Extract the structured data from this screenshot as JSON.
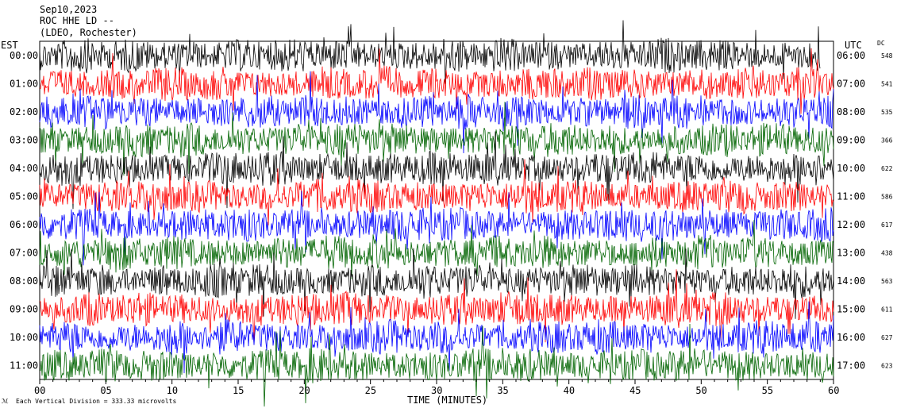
{
  "header": {
    "date": "Sep10,2023",
    "station": "ROC HHE LD --",
    "network": "(LDEO, Rochester)"
  },
  "left_axis_title": "EST",
  "right_axis_title": "UTC",
  "dc_title": "DC",
  "footer_note": "Each Vertical Division =  333.33 microvolts",
  "chart_data": {
    "type": "line",
    "title": "",
    "xlabel": "TIME (MINUTES)",
    "xlim": [
      0,
      60
    ],
    "x_ticks": [
      "00",
      "05",
      "10",
      "15",
      "20",
      "25",
      "30",
      "35",
      "40",
      "45",
      "50",
      "55",
      "60"
    ],
    "x_tick_values": [
      0,
      5,
      10,
      15,
      20,
      25,
      30,
      35,
      40,
      45,
      50,
      55,
      60
    ],
    "trace_colors": [
      "#000000",
      "#ff0000",
      "#0000ff",
      "#006400"
    ],
    "series": [
      {
        "est": "00:00",
        "utc": "06:00",
        "dc": "548",
        "color": "#000000",
        "end_minute": 59
      },
      {
        "est": "01:00",
        "utc": "07:00",
        "dc": "541",
        "color": "#ff0000",
        "end_minute": 60
      },
      {
        "est": "02:00",
        "utc": "08:00",
        "dc": "535",
        "color": "#0000ff",
        "end_minute": 60
      },
      {
        "est": "03:00",
        "utc": "09:00",
        "dc": "366",
        "color": "#006400",
        "end_minute": 60
      },
      {
        "est": "04:00",
        "utc": "10:00",
        "dc": "622",
        "color": "#000000",
        "end_minute": 60
      },
      {
        "est": "05:00",
        "utc": "11:00",
        "dc": "586",
        "color": "#ff0000",
        "end_minute": 60
      },
      {
        "est": "06:00",
        "utc": "12:00",
        "dc": "617",
        "color": "#0000ff",
        "end_minute": 60
      },
      {
        "est": "07:00",
        "utc": "13:00",
        "dc": "438",
        "color": "#006400",
        "end_minute": 60
      },
      {
        "est": "08:00",
        "utc": "14:00",
        "dc": "563",
        "color": "#000000",
        "end_minute": 60
      },
      {
        "est": "09:00",
        "utc": "15:00",
        "dc": "611",
        "color": "#ff0000",
        "end_minute": 60
      },
      {
        "est": "10:00",
        "utc": "16:00",
        "dc": "627",
        "color": "#0000ff",
        "end_minute": 60
      },
      {
        "est": "11:00",
        "utc": "17:00",
        "dc": "623",
        "color": "#006400",
        "end_minute": 60
      }
    ]
  }
}
